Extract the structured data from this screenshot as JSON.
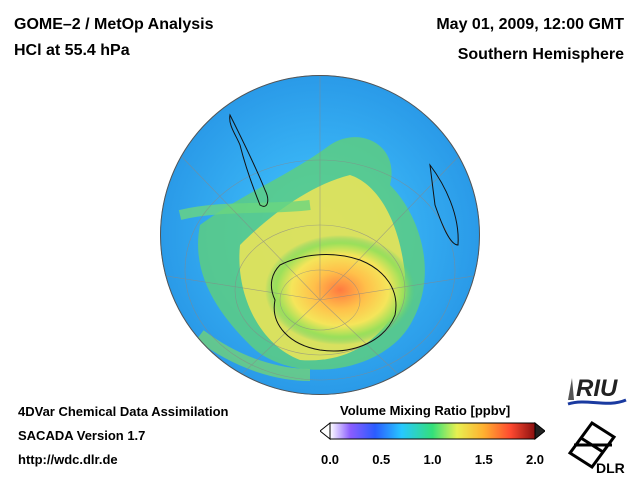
{
  "header": {
    "title_line1": "GOME–2 / MetOp Analysis",
    "title_line2": "HCl at 55.4 hPa",
    "date": "May 01, 2009, 12:00 GMT",
    "region": "Southern Hemisphere"
  },
  "footer": {
    "line1": "4DVar Chemical Data Assimilation",
    "line2": "SACADA Version 1.7",
    "line3": "http://wdc.dlr.de"
  },
  "colorbar": {
    "title": "Volume Mixing Ratio [ppbv]",
    "ticks": [
      "0.0",
      "0.5",
      "1.0",
      "1.5",
      "2.0"
    ],
    "range": [
      0.0,
      2.0
    ]
  },
  "logos": {
    "riu": "RIU",
    "dlr": "DLR"
  },
  "colors": {
    "ocean_low": "#2aa9f0",
    "mid": "#4fd070",
    "high": "#f7e35a",
    "peak": "#ff6a3a"
  }
}
